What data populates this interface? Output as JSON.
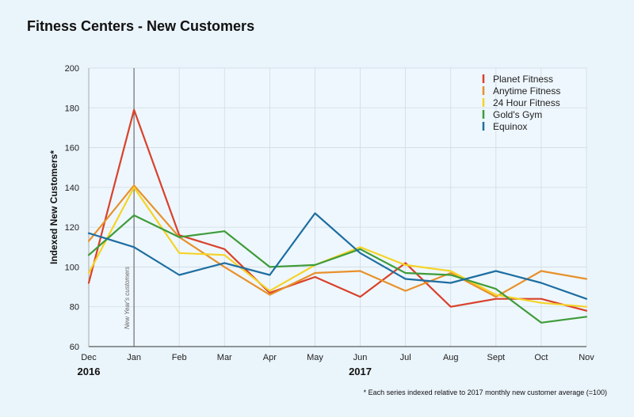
{
  "chart_data": {
    "type": "line",
    "title": "Fitness Centers - New Customers",
    "ylabel": "Indexed New Customers*",
    "xlabel": "",
    "categories": [
      "Dec",
      "Jan",
      "Feb",
      "Mar",
      "Apr",
      "May",
      "Jun",
      "Jul",
      "Aug",
      "Sept",
      "Oct",
      "Nov"
    ],
    "year_labels": [
      {
        "label": "2016",
        "category": "Dec"
      },
      {
        "label": "2017",
        "category": "Jun"
      }
    ],
    "ylim": [
      60,
      200
    ],
    "yticks": [
      60,
      80,
      100,
      120,
      140,
      160,
      180,
      200
    ],
    "grid": true,
    "legend_position": "top-right",
    "annotation": {
      "text": "New Year's customers",
      "category": "Jan"
    },
    "footnote": "* Each series indexed relative to 2017 monthly new customer average (=100)",
    "series": [
      {
        "name": "Planet Fitness",
        "color": "#d9412b",
        "values": [
          92,
          179,
          116,
          109,
          87,
          95,
          85,
          102,
          80,
          84,
          84,
          78
        ]
      },
      {
        "name": "Anytime Fitness",
        "color": "#e8912b",
        "values": [
          113,
          141,
          115,
          100,
          86,
          97,
          98,
          88,
          97,
          85,
          98,
          94
        ]
      },
      {
        "name": "24 Hour Fitness",
        "color": "#f5d327",
        "values": [
          97,
          140,
          107,
          106,
          88,
          101,
          110,
          101,
          98,
          86,
          82,
          80
        ]
      },
      {
        "name": "Gold's Gym",
        "color": "#3e9c3a",
        "values": [
          106,
          126,
          115,
          118,
          100,
          101,
          109,
          97,
          96,
          89,
          72,
          75
        ]
      },
      {
        "name": "Equinox",
        "color": "#1e6ea1",
        "values": [
          117,
          110,
          96,
          102,
          96,
          127,
          107,
          94,
          92,
          98,
          92,
          84
        ]
      }
    ]
  }
}
